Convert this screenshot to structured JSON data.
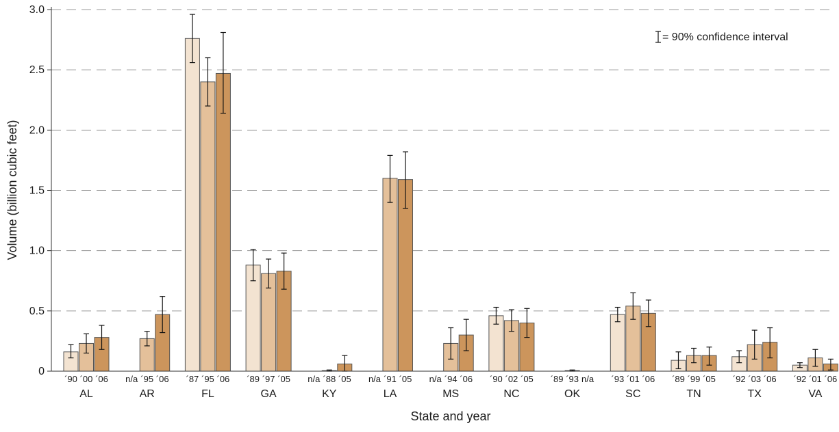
{
  "chart_data": {
    "type": "bar",
    "xlabel": "State and year",
    "ylabel": "Volume (billion cubic feet)",
    "ylim": [
      0,
      3.0
    ],
    "yticks": [
      "0",
      "0.5",
      "1.0",
      "1.5",
      "2.0",
      "2.5",
      "3.0"
    ],
    "grid": "horizontal dashed",
    "legend": {
      "text": "= 90% confidence interval",
      "position": "top-right",
      "icon": "error-bar-icon"
    },
    "colors": [
      "#f3e3d1",
      "#e4c09a",
      "#cc955c"
    ],
    "groups": [
      {
        "state": "AL",
        "bars": [
          {
            "year": "´90",
            "value": 0.16,
            "ci": [
              0.11,
              0.22
            ]
          },
          {
            "year": "´00",
            "value": 0.23,
            "ci": [
              0.15,
              0.31
            ]
          },
          {
            "year": "´06",
            "value": 0.28,
            "ci": [
              0.18,
              0.38
            ]
          }
        ]
      },
      {
        "state": "AR",
        "bars": [
          {
            "year": "n/a",
            "value": null
          },
          {
            "year": "´95",
            "value": 0.27,
            "ci": [
              0.21,
              0.33
            ]
          },
          {
            "year": "´06",
            "value": 0.47,
            "ci": [
              0.32,
              0.62
            ]
          }
        ]
      },
      {
        "state": "FL",
        "bars": [
          {
            "year": "´87",
            "value": 2.76,
            "ci": [
              2.56,
              2.96
            ]
          },
          {
            "year": "´95",
            "value": 2.4,
            "ci": [
              2.2,
              2.6
            ]
          },
          {
            "year": "´06",
            "value": 2.47,
            "ci": [
              2.14,
              2.81
            ]
          }
        ]
      },
      {
        "state": "GA",
        "bars": [
          {
            "year": "´89",
            "value": 0.88,
            "ci": [
              0.75,
              1.01
            ]
          },
          {
            "year": "´97",
            "value": 0.81,
            "ci": [
              0.69,
              0.93
            ]
          },
          {
            "year": "´05",
            "value": 0.83,
            "ci": [
              0.68,
              0.98
            ]
          }
        ]
      },
      {
        "state": "KY",
        "bars": [
          {
            "year": "n/a",
            "value": null
          },
          {
            "year": "´88",
            "value": 0.005,
            "ci": [
              0.0,
              0.01
            ]
          },
          {
            "year": "´05",
            "value": 0.06,
            "ci": [
              0.0,
              0.13
            ]
          }
        ]
      },
      {
        "state": "LA",
        "bars": [
          {
            "year": "n/a",
            "value": null
          },
          {
            "year": "´91",
            "value": 1.6,
            "ci": [
              1.4,
              1.79
            ]
          },
          {
            "year": "´05",
            "value": 1.59,
            "ci": [
              1.35,
              1.82
            ]
          }
        ]
      },
      {
        "state": "MS",
        "bars": [
          {
            "year": "n/a",
            "value": null
          },
          {
            "year": "´94",
            "value": 0.23,
            "ci": [
              0.1,
              0.36
            ]
          },
          {
            "year": "´06",
            "value": 0.3,
            "ci": [
              0.17,
              0.43
            ]
          }
        ]
      },
      {
        "state": "NC",
        "bars": [
          {
            "year": "´90",
            "value": 0.46,
            "ci": [
              0.39,
              0.53
            ]
          },
          {
            "year": "´02",
            "value": 0.42,
            "ci": [
              0.33,
              0.51
            ]
          },
          {
            "year": "´05",
            "value": 0.4,
            "ci": [
              0.28,
              0.52
            ]
          }
        ]
      },
      {
        "state": "OK",
        "bars": [
          {
            "year": "´89",
            "value": 0.0,
            "ci": null
          },
          {
            "year": "´93",
            "value": 0.005,
            "ci": [
              0.0,
              0.01
            ]
          },
          {
            "year": "n/a",
            "value": null
          }
        ]
      },
      {
        "state": "SC",
        "bars": [
          {
            "year": "´93",
            "value": 0.47,
            "ci": [
              0.41,
              0.53
            ]
          },
          {
            "year": "´01",
            "value": 0.54,
            "ci": [
              0.43,
              0.65
            ]
          },
          {
            "year": "´06",
            "value": 0.48,
            "ci": [
              0.37,
              0.59
            ]
          }
        ]
      },
      {
        "state": "TN",
        "bars": [
          {
            "year": "´89",
            "value": 0.09,
            "ci": [
              0.02,
              0.16
            ]
          },
          {
            "year": "´99",
            "value": 0.13,
            "ci": [
              0.07,
              0.19
            ]
          },
          {
            "year": "´05",
            "value": 0.13,
            "ci": [
              0.05,
              0.2
            ]
          }
        ]
      },
      {
        "state": "TX",
        "bars": [
          {
            "year": "´92",
            "value": 0.12,
            "ci": [
              0.07,
              0.17
            ]
          },
          {
            "year": "´03",
            "value": 0.22,
            "ci": [
              0.1,
              0.34
            ]
          },
          {
            "year": "´06",
            "value": 0.24,
            "ci": [
              0.11,
              0.36
            ]
          }
        ]
      },
      {
        "state": "VA",
        "bars": [
          {
            "year": "´92",
            "value": 0.05,
            "ci": [
              0.03,
              0.07
            ]
          },
          {
            "year": "´01",
            "value": 0.11,
            "ci": [
              0.04,
              0.18
            ]
          },
          {
            "year": "´06",
            "value": 0.06,
            "ci": [
              0.01,
              0.1
            ]
          }
        ]
      }
    ]
  }
}
